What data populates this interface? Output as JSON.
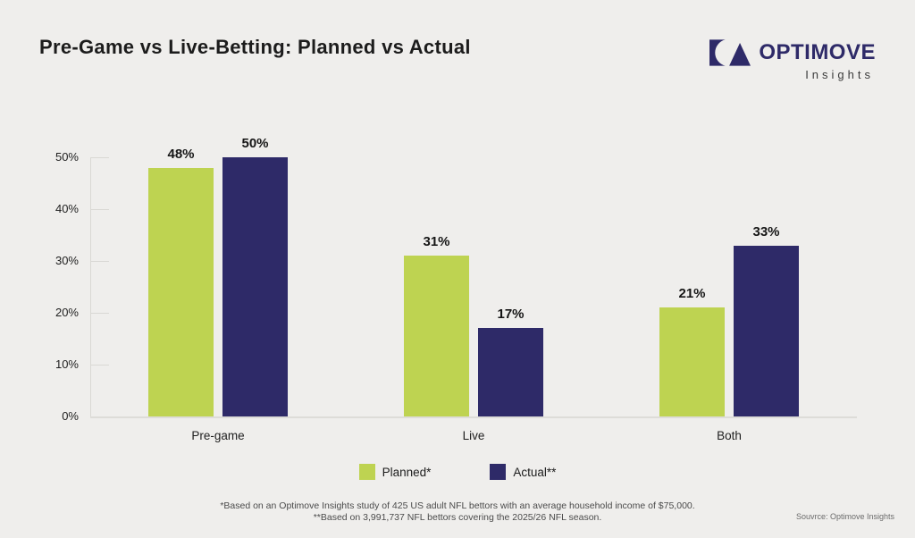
{
  "page": {
    "background": "#EFEEEC"
  },
  "header": {
    "title": "Pre-Game vs Live-Betting: Planned vs Actual",
    "logo": {
      "brand": "OPTIMOVE",
      "sub": "Insights",
      "color": "#2E2A68"
    }
  },
  "chart_data": {
    "type": "bar",
    "title": "Pre-Game vs Live-Betting: Planned vs Actual",
    "categories": [
      "Pre-game",
      "Live",
      "Both"
    ],
    "series": [
      {
        "name": "Planned*",
        "color": "#BED351",
        "values": [
          48,
          31,
          21
        ]
      },
      {
        "name": "Actual**",
        "color": "#2E2A68",
        "values": [
          50,
          17,
          33
        ]
      }
    ],
    "data_labels": [
      [
        "48%",
        "31%",
        "21%"
      ],
      [
        "50%",
        "17%",
        "33%"
      ]
    ],
    "value_suffix": "%",
    "ylim": [
      0,
      50
    ],
    "yticks": [
      "0%",
      "10%",
      "20%",
      "30%",
      "40%",
      "50%"
    ],
    "grid": false,
    "legend_position": "bottom"
  },
  "footnotes": {
    "line1": "*Based on an Optimove Insights study of 425 US adult NFL bettors with an average household income of $75,000.",
    "line2": "**Based on 3,991,737 NFL bettors covering the 2025/26 NFL season.",
    "source": "Souvrce: Optimove Insights"
  }
}
